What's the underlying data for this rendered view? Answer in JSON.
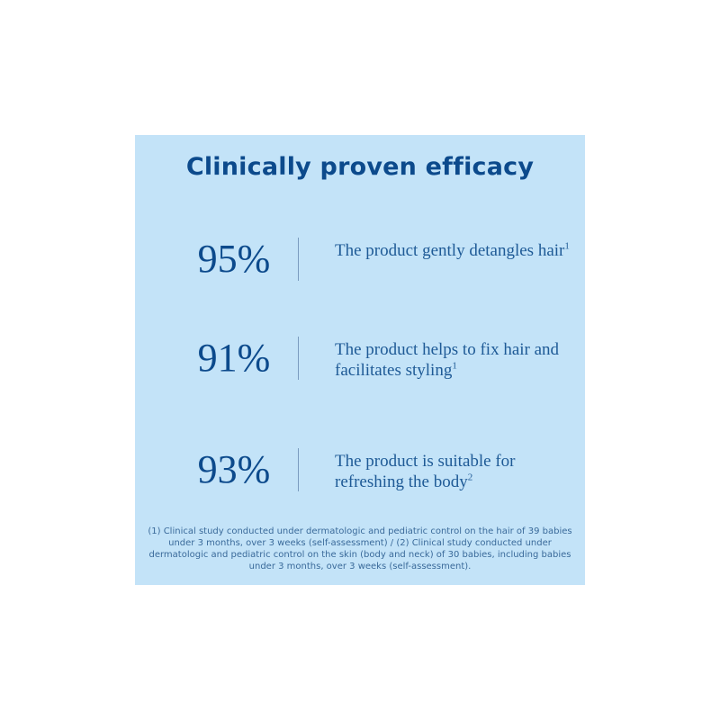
{
  "title": "Clinically proven efficacy",
  "stats": [
    {
      "value": "95%",
      "text": "The product gently detangles hair",
      "sup": "1"
    },
    {
      "value": "91%",
      "text": "The product helps to fix hair and facilitates styling",
      "sup": "1"
    },
    {
      "value": "93%",
      "text": "The product is suitable for refreshing the body",
      "sup": "2"
    }
  ],
  "footnote": "(1) Clinical study conducted under dermatologic and pediatric control on the hair of 39 babies under 3 months, over 3 weeks (self-assessment) / (2) Clinical study conducted under dermatologic and pediatric control on the skin (body and neck) of 30 babies, including babies under 3 months, over 3 weeks (self-assessment).",
  "colors": {
    "panel_background": "#c3e3f8",
    "title": "#0c4a8c",
    "body_text": "#1e5a96"
  }
}
